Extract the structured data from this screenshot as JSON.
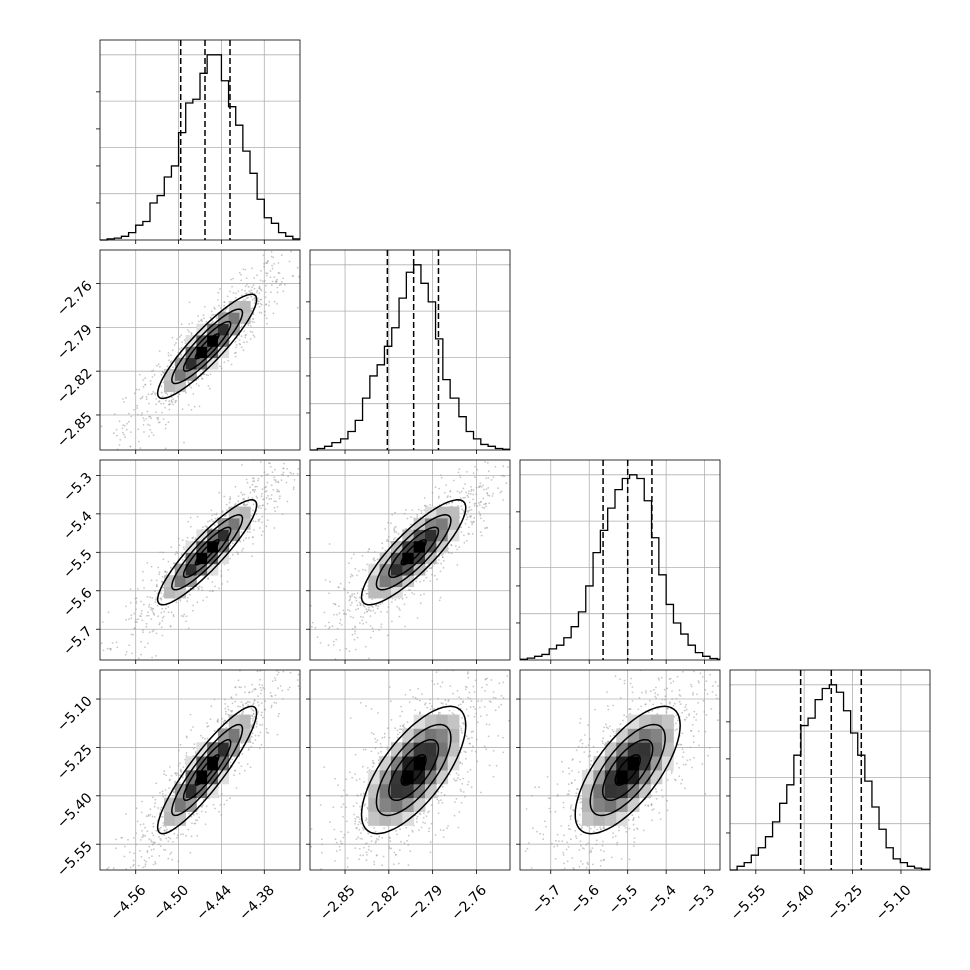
{
  "chart_data": {
    "type": "corner",
    "colors": {
      "line": "#000000",
      "grid": "#b0b0b0",
      "scatter": "#9a9a9a",
      "frame": "#000000"
    },
    "grid": true,
    "parameters": [
      {
        "mean": -4.46,
        "sigma": 0.033,
        "xlim": [
          -4.61,
          -4.33
        ],
        "ticks": [
          -4.56,
          -4.5,
          -4.44,
          -4.38
        ],
        "tick_labels": [
          "−4.56",
          "−4.50",
          "−4.44",
          "−4.38"
        ],
        "quantiles": [
          -4.497,
          -4.463,
          -4.428
        ],
        "hist_x": [
          -4.61,
          -4.6,
          -4.59,
          -4.58,
          -4.57,
          -4.56,
          -4.55,
          -4.54,
          -4.53,
          -4.52,
          -4.51,
          -4.5,
          -4.49,
          -4.48,
          -4.47,
          -4.46,
          -4.45,
          -4.44,
          -4.43,
          -4.42,
          -4.41,
          -4.4,
          -4.39,
          -4.38,
          -4.37,
          -4.36,
          -4.35,
          -4.34,
          -4.33
        ],
        "hist_y": [
          0,
          0.006,
          0.01,
          0.02,
          0.04,
          0.08,
          0.1,
          0.2,
          0.24,
          0.34,
          0.4,
          0.58,
          0.74,
          0.76,
          0.9,
          1.0,
          1.0,
          0.86,
          0.72,
          0.62,
          0.48,
          0.36,
          0.22,
          0.12,
          0.09,
          0.04,
          0.02,
          0.006,
          0.0
        ]
      },
      {
        "mean": -2.803,
        "sigma": 0.017,
        "xlim": [
          -2.874,
          -2.737
        ],
        "ticks": [
          -2.85,
          -2.82,
          -2.79,
          -2.76
        ],
        "tick_labels": [
          "−2.85",
          "−2.82",
          "−2.79",
          "−2.76"
        ],
        "quantiles": [
          -2.821,
          -2.803,
          -2.786
        ],
        "hist_x": [
          -2.874,
          -2.869,
          -2.864,
          -2.859,
          -2.853,
          -2.848,
          -2.843,
          -2.838,
          -2.833,
          -2.828,
          -2.823,
          -2.818,
          -2.813,
          -2.808,
          -2.803,
          -2.798,
          -2.793,
          -2.788,
          -2.783,
          -2.778,
          -2.772,
          -2.767,
          -2.762,
          -2.757,
          -2.752,
          -2.747,
          -2.742,
          -2.737
        ],
        "hist_y": [
          0,
          0.008,
          0.02,
          0.04,
          0.06,
          0.1,
          0.16,
          0.28,
          0.4,
          0.46,
          0.56,
          0.66,
          0.82,
          0.96,
          1.0,
          0.9,
          0.8,
          0.6,
          0.38,
          0.28,
          0.18,
          0.1,
          0.06,
          0.03,
          0.02,
          0.008,
          0.004,
          0
        ]
      },
      {
        "mean": -5.5,
        "sigma": 0.065,
        "xlim": [
          -5.78,
          -5.26
        ],
        "ticks": [
          -5.7,
          -5.6,
          -5.5,
          -5.4,
          -5.3
        ],
        "tick_labels": [
          "−5.7",
          "−5.6",
          "−5.5",
          "−5.4",
          "−5.3"
        ],
        "quantiles": [
          -5.564,
          -5.5,
          -5.437
        ],
        "hist_x": [
          -5.78,
          -5.761,
          -5.742,
          -5.723,
          -5.704,
          -5.685,
          -5.666,
          -5.647,
          -5.628,
          -5.609,
          -5.59,
          -5.571,
          -5.552,
          -5.533,
          -5.514,
          -5.495,
          -5.476,
          -5.457,
          -5.438,
          -5.419,
          -5.4,
          -5.381,
          -5.362,
          -5.343,
          -5.324,
          -5.305,
          -5.286,
          -5.267,
          -5.26
        ],
        "hist_y": [
          0.004,
          0.01,
          0.02,
          0.03,
          0.06,
          0.08,
          0.12,
          0.18,
          0.26,
          0.4,
          0.58,
          0.7,
          0.82,
          0.92,
          0.98,
          1.0,
          0.98,
          0.86,
          0.66,
          0.46,
          0.3,
          0.2,
          0.14,
          0.08,
          0.04,
          0.02,
          0.008,
          0.004,
          0
        ]
      },
      {
        "mean": -5.32,
        "sigma": 0.094,
        "xlim": [
          -5.63,
          -5.01
        ],
        "ticks": [
          -5.55,
          -5.4,
          -5.25,
          -5.1
        ],
        "tick_labels": [
          "−5.55",
          "−5.40",
          "−5.25",
          "−5.10"
        ],
        "quantiles": [
          -5.411,
          -5.316,
          -5.223
        ],
        "hist_x": [
          -5.63,
          -5.608,
          -5.586,
          -5.564,
          -5.542,
          -5.52,
          -5.498,
          -5.476,
          -5.454,
          -5.432,
          -5.41,
          -5.388,
          -5.366,
          -5.344,
          -5.322,
          -5.3,
          -5.278,
          -5.256,
          -5.234,
          -5.212,
          -5.19,
          -5.168,
          -5.146,
          -5.124,
          -5.102,
          -5.08,
          -5.058,
          -5.036,
          -5.01
        ],
        "hist_y": [
          0,
          0.02,
          0.04,
          0.08,
          0.12,
          0.18,
          0.26,
          0.36,
          0.46,
          0.62,
          0.78,
          0.82,
          0.92,
          0.98,
          1.0,
          0.96,
          0.86,
          0.74,
          0.62,
          0.48,
          0.34,
          0.22,
          0.12,
          0.06,
          0.04,
          0.02,
          0.01,
          0.004,
          0
        ]
      }
    ],
    "correlations": [
      [
        1.0,
        0.9,
        0.9,
        0.9
      ],
      [
        0.9,
        1.0,
        0.85,
        0.7
      ],
      [
        0.9,
        0.85,
        1.0,
        0.7
      ],
      [
        0.9,
        0.7,
        0.7,
        1.0
      ]
    ]
  }
}
